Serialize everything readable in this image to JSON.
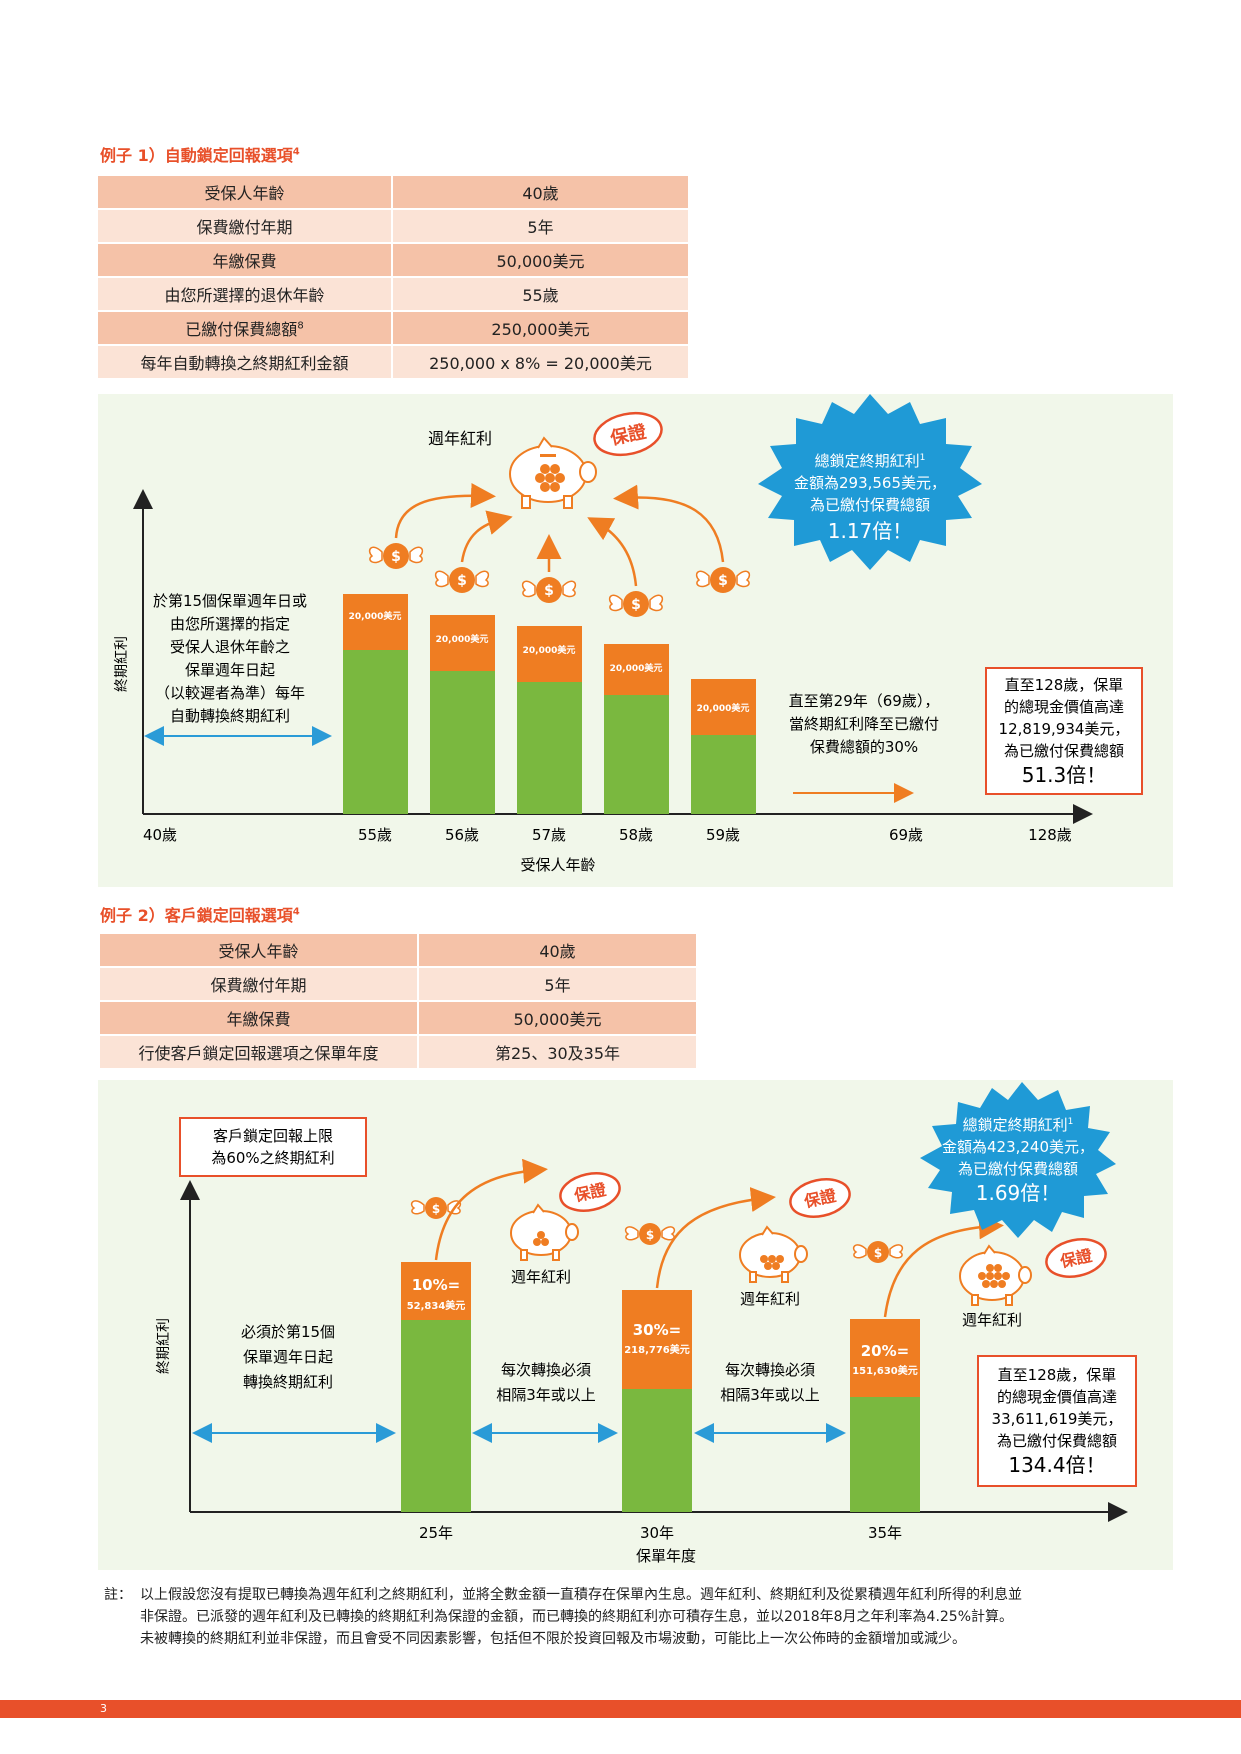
{
  "example1": {
    "title": "例子 1）自動鎖定回報選項",
    "title_sup": "4",
    "rows": [
      {
        "label": "受保人年齡",
        "value": "40歲"
      },
      {
        "label": "保費繳付年期",
        "value": "5年"
      },
      {
        "label": "年繳保費",
        "value": "50,000美元"
      },
      {
        "label": "由您所選擇的退休年齡",
        "value": "55歲"
      },
      {
        "label": "已繳付保費總額",
        "label_sup": "8",
        "value": "250,000美元"
      },
      {
        "label": "每年自動轉換之終期紅利金額",
        "value": "250,000 x 8% = 20,000美元"
      }
    ],
    "chart": {
      "annual_bonus_label": "週年紅利",
      "guarantee_stamp": "保證",
      "burst": {
        "line1": "總鎖定終期紅利",
        "sup": "1",
        "line2": "金額為293,565美元，",
        "line3": "為已繳付保費總額",
        "multiple": "1.17倍！"
      },
      "y_axis_label": "終期紅利",
      "x_axis_label": "受保人年齡",
      "left_text": [
        "於第15個保單週年日或",
        "由您所選擇的指定",
        "受保人退休年齡之",
        "保單週年日起",
        "（以較遲者為準）每年",
        "自動轉換終期紅利"
      ],
      "middle_text": [
        "直至第29年（69歲），",
        "當終期紅利降至已繳付",
        "保費總額的30%"
      ],
      "box_text": [
        "直至128歲，保單",
        "的總現金價值高達",
        "12,819,934美元，",
        "為已繳付保費總額"
      ],
      "box_multiple": "51.3倍！",
      "bar_label": "20,000美元",
      "x_ticks": [
        "40歲",
        "55歲",
        "56歲",
        "57歲",
        "58歲",
        "59歲",
        "69歲",
        "128歲"
      ]
    }
  },
  "example2": {
    "title": "例子 2）客戶鎖定回報選項",
    "title_sup": "4",
    "rows": [
      {
        "label": "受保人年齡",
        "value": "40歲"
      },
      {
        "label": "保費繳付年期",
        "value": "5年"
      },
      {
        "label": "年繳保費",
        "value": "50,000美元"
      },
      {
        "label": "行使客戶鎖定回報選項之保單年度",
        "value": "第25、30及35年"
      }
    ],
    "chart": {
      "cap_box": [
        "客戶鎖定回報上限",
        "為60%之終期紅利"
      ],
      "guarantee_stamp": "保證",
      "annual_bonus_label": "週年紅利",
      "burst": {
        "line1": "總鎖定終期紅利",
        "sup": "1",
        "line2": "金額為423,240美元，",
        "line3": "為已繳付保費總額",
        "multiple": "1.69倍！"
      },
      "y_axis_label": "終期紅利",
      "x_axis_label": "保單年度",
      "left_text": [
        "必須於第15個",
        "保單週年日起",
        "轉換終期紅利"
      ],
      "gap_text": [
        "每次轉換必須",
        "相隔3年或以上"
      ],
      "box_text": [
        "直至128歲，保單",
        "的總現金價值高達",
        "33,611,619美元，",
        "為已繳付保費總額"
      ],
      "box_multiple": "134.4倍！",
      "bars": [
        {
          "pct": "10%=",
          "amount": "52,834美元",
          "x_tick": "25年"
        },
        {
          "pct": "30%=",
          "amount": "218,776美元",
          "x_tick": "30年"
        },
        {
          "pct": "20%=",
          "amount": "151,630美元",
          "x_tick": "35年"
        }
      ]
    }
  },
  "note": {
    "prefix": "註：",
    "lines": [
      "以上假設您沒有提取已轉換為週年紅利之終期紅利，並將全數金額一直積存在保單內生息。週年紅利、終期紅利及從累積週年紅利所得的利息並",
      "非保證。已派發的週年紅利及已轉換的終期紅利為保證的金額，而已轉換的終期紅利亦可積存生息，並以2018年8月之年利率為4.25%計算。",
      "未被轉換的終期紅利並非保證，而且會受不同因素影響，包括但不限於投資回報及市場波動，可能比上一次公佈時的金額增加或減少。"
    ]
  },
  "page_number": "3",
  "colors": {
    "orange": "#e8502a",
    "green": "#7ab83f",
    "bar_orange": "#ef7d22",
    "blue": "#1f9ad6",
    "peach": "#f5c2a8",
    "light_peach": "#fbe3d6",
    "panel": "#f1f7ea"
  }
}
